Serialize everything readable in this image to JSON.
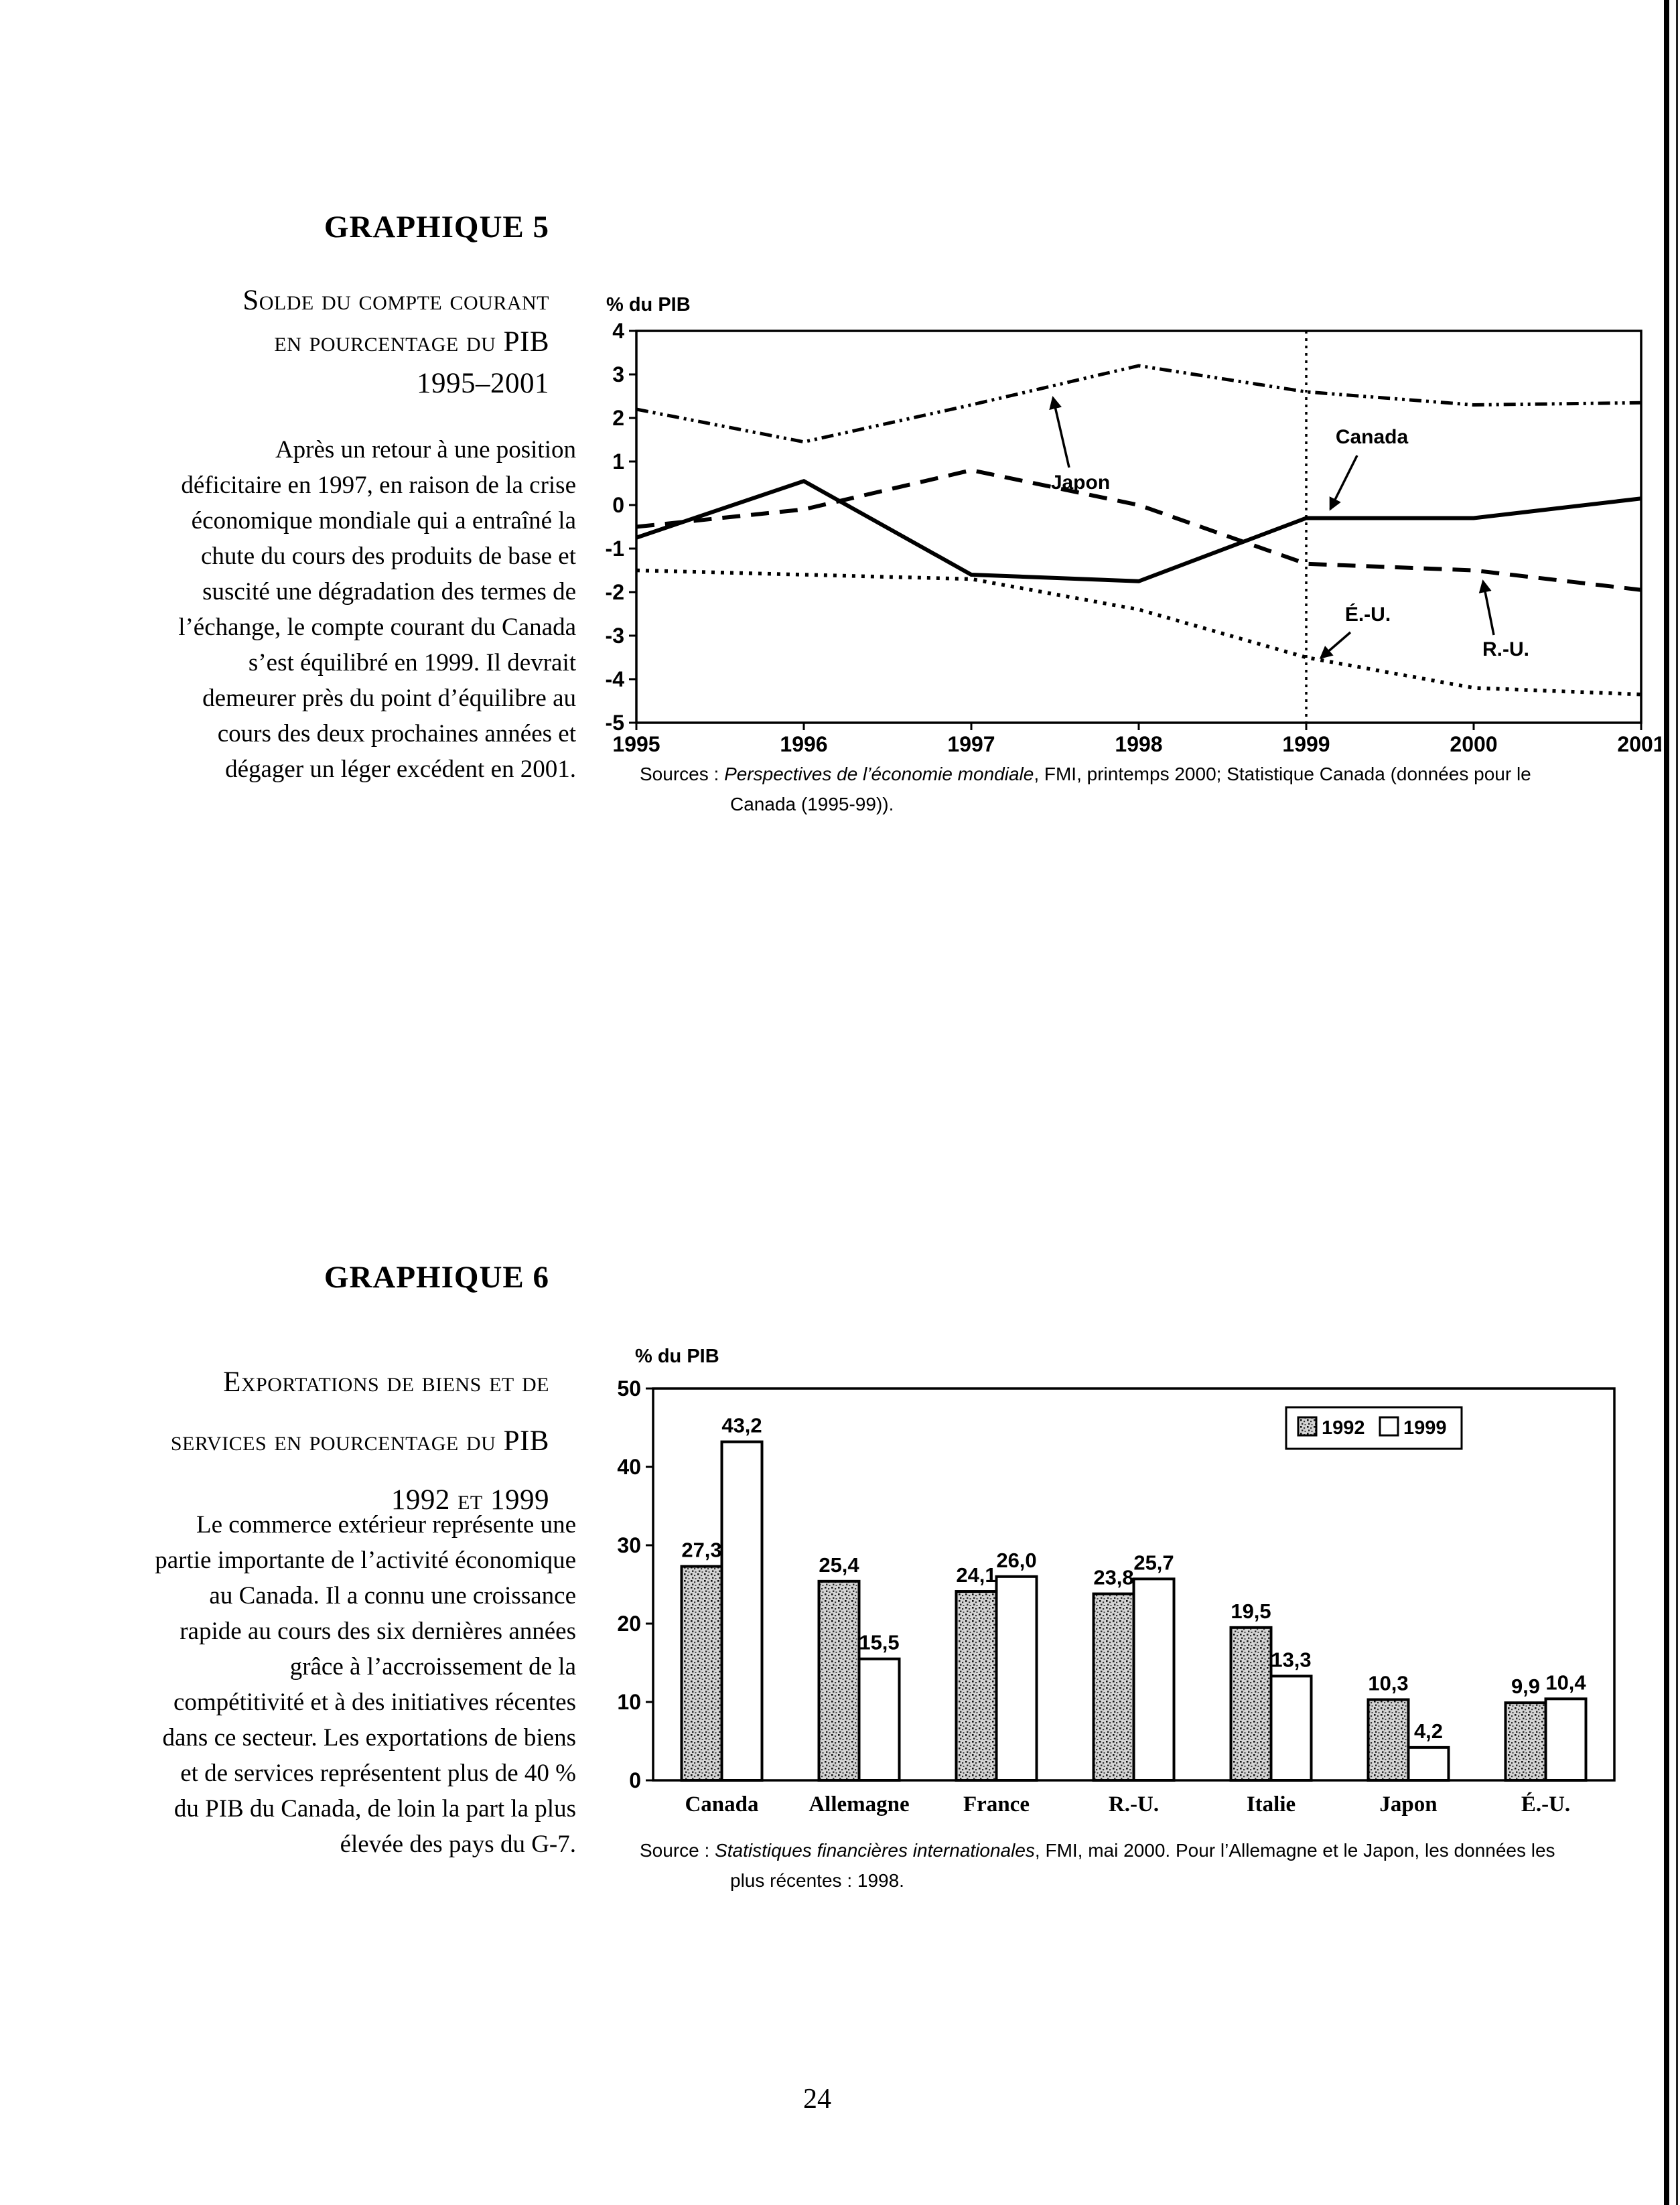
{
  "page_number": "24",
  "graphique5": {
    "title": "GRAPHIQUE 5",
    "subtitle_lines": [
      "Solde du compte courant",
      "en pourcentage du PIB",
      "1995–2001"
    ],
    "paragraph_lines": [
      "Après un retour à une position",
      "déficitaire en 1997, en raison de la crise",
      "économique mondiale qui a entraîné la",
      "chute du cours des produits de base et",
      "suscité une dégradation des termes de",
      "l’échange, le compte courant du Canada",
      "s’est équilibré en 1999. Il devrait",
      "demeurer près du point d’équilibre au",
      "cours des deux prochaines années et",
      "dégager un léger excédent en 2001."
    ],
    "source": {
      "prefix": "Sources : ",
      "italic": "Perspectives de l’économie mondiale",
      "after": ", FMI, printemps 2000; Statistique Canada (données pour le",
      "line2": "Canada (1995-99))."
    }
  },
  "graphique6": {
    "title": "GRAPHIQUE 6",
    "subtitle_lines": [
      "Exportations de biens et de",
      "services en pourcentage du PIB",
      "1992 et 1999"
    ],
    "paragraph_lines": [
      "Le commerce extérieur représente une",
      "partie importante de l’activité économique",
      "au Canada. Il a connu une croissance",
      "rapide au cours des six dernières années",
      "grâce à l’accroissement de la",
      "compétitivité et à des initiatives récentes",
      "dans ce secteur. Les exportations de biens",
      "et de services représentent plus de 40 %",
      "du PIB du Canada, de loin la part la plus",
      "élevée des pays du G-7."
    ],
    "source": {
      "prefix": "Source : ",
      "italic": "Statistiques financières internationales",
      "after": ", FMI, mai 2000. Pour l’Allemagne et le Japon, les données les",
      "line2": "plus récentes : 1998."
    }
  },
  "chart_data": [
    {
      "type": "line",
      "title": "Solde du compte courant en pourcentage du PIB, 1995–2001",
      "ylabel": "% du PIB",
      "x": [
        1995,
        1996,
        1997,
        1998,
        1999,
        2000,
        2001
      ],
      "ylim": [
        -5,
        4
      ],
      "y_ticks": [
        4,
        3,
        2,
        1,
        0,
        -1,
        -2,
        -3,
        -4,
        -5
      ],
      "grid": false,
      "vertical_divider_x": 1999,
      "series": [
        {
          "name": "Japon",
          "style": "dash-dot",
          "values": [
            2.2,
            1.45,
            2.3,
            3.2,
            2.6,
            2.3,
            2.35
          ]
        },
        {
          "name": "Canada",
          "style": "solid",
          "values": [
            -0.75,
            0.55,
            -1.6,
            -1.75,
            -0.3,
            -0.3,
            0.15
          ]
        },
        {
          "name": "R.-U.",
          "style": "dashed",
          "values": [
            -0.5,
            -0.1,
            0.8,
            0.0,
            -1.35,
            -1.5,
            -1.95
          ]
        },
        {
          "name": "É.-U.",
          "style": "dotted",
          "values": [
            -1.5,
            -1.6,
            -1.7,
            -2.4,
            -3.5,
            -4.2,
            -4.35
          ]
        }
      ],
      "annotation_labels": [
        "Japon",
        "Canada",
        "É.-U.",
        "R.-U."
      ]
    },
    {
      "type": "bar",
      "title": "Exportations de biens et de services en pourcentage du PIB, 1992 et 1999",
      "ylabel": "% du PIB",
      "categories": [
        "Canada",
        "Allemagne",
        "France",
        "R.-U.",
        "Italie",
        "Japon",
        "É.-U."
      ],
      "series": [
        {
          "name": "1992",
          "values": [
            27.3,
            25.4,
            24.1,
            23.8,
            19.5,
            10.3,
            9.9
          ]
        },
        {
          "name": "1999",
          "values": [
            43.2,
            15.5,
            26.0,
            25.7,
            13.3,
            4.2,
            10.4
          ]
        }
      ],
      "ylim": [
        0,
        50
      ],
      "y_ticks": [
        0,
        10,
        20,
        30,
        40,
        50
      ],
      "legend_position": "upper-right",
      "value_labels": true
    }
  ]
}
